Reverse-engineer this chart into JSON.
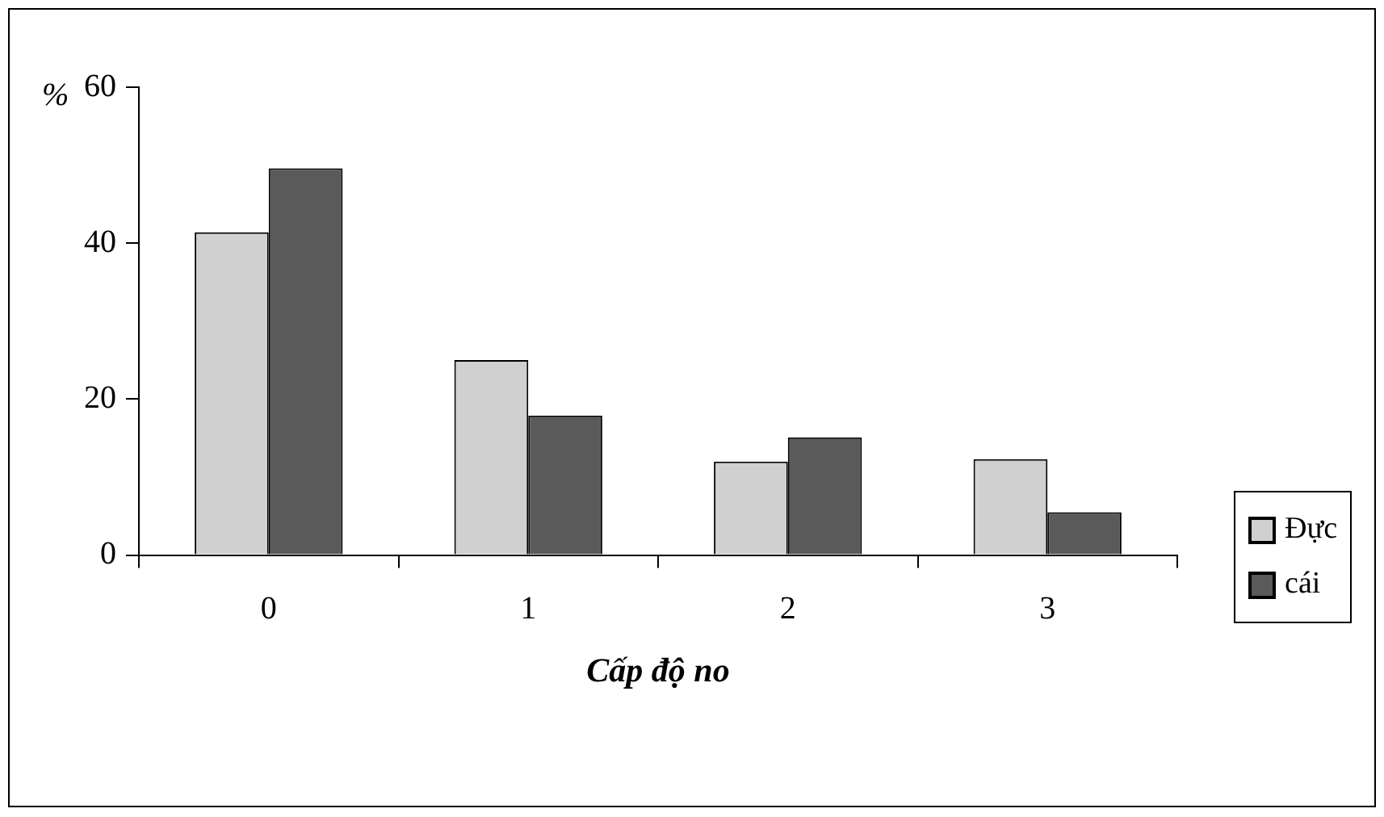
{
  "chart_data": {
    "type": "bar",
    "ylabel": "%",
    "xlabel": "Cấp độ no",
    "categories": [
      "0",
      "1",
      "2",
      "3"
    ],
    "series": [
      {
        "name": "Đực",
        "color": "#d0d0d0",
        "values": [
          41.4,
          25,
          12,
          12.3
        ]
      },
      {
        "name": "cái",
        "color": "#5a5a5a",
        "values": [
          49.6,
          17.9,
          15.1,
          5.5
        ]
      }
    ],
    "ylim": [
      0,
      60
    ],
    "yticks": [
      0,
      20,
      40,
      60
    ],
    "grid": false,
    "legend": "right"
  }
}
